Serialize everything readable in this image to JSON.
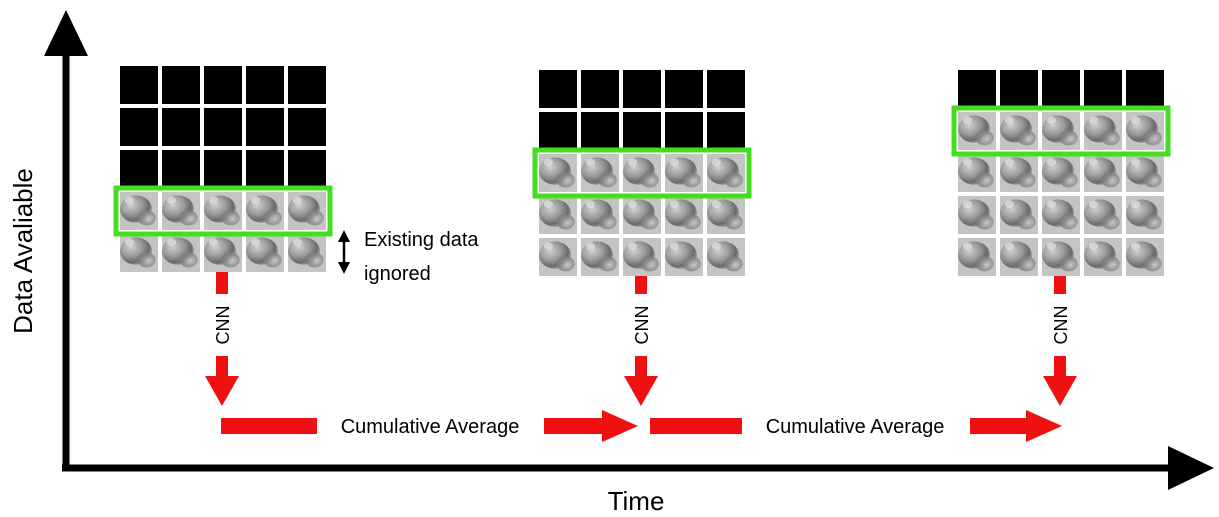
{
  "axes": {
    "x_label": "Time",
    "y_label": "Data Avaliable"
  },
  "annotation": {
    "line1": "Existing data",
    "line2": "ignored"
  },
  "arrows": {
    "cnn_label": "CNN",
    "average_label": "Cumulative Average"
  },
  "grids": [
    {
      "rows": 5,
      "cols": 5,
      "empty_rows": 3,
      "window_rows": 1,
      "ignored_rows": 1
    },
    {
      "rows": 5,
      "cols": 5,
      "empty_rows": 2,
      "window_rows": 1,
      "ignored_rows": 0
    },
    {
      "rows": 5,
      "cols": 5,
      "empty_rows": 1,
      "window_rows": 1,
      "ignored_rows": 0
    }
  ],
  "colors": {
    "axis": "#000000",
    "empty_cell": "#000000",
    "window_outline": "#44dd22",
    "arrow": "#ee1111",
    "cell_light": "#c4c4c4",
    "cell_dark": "#6a6a6a"
  }
}
